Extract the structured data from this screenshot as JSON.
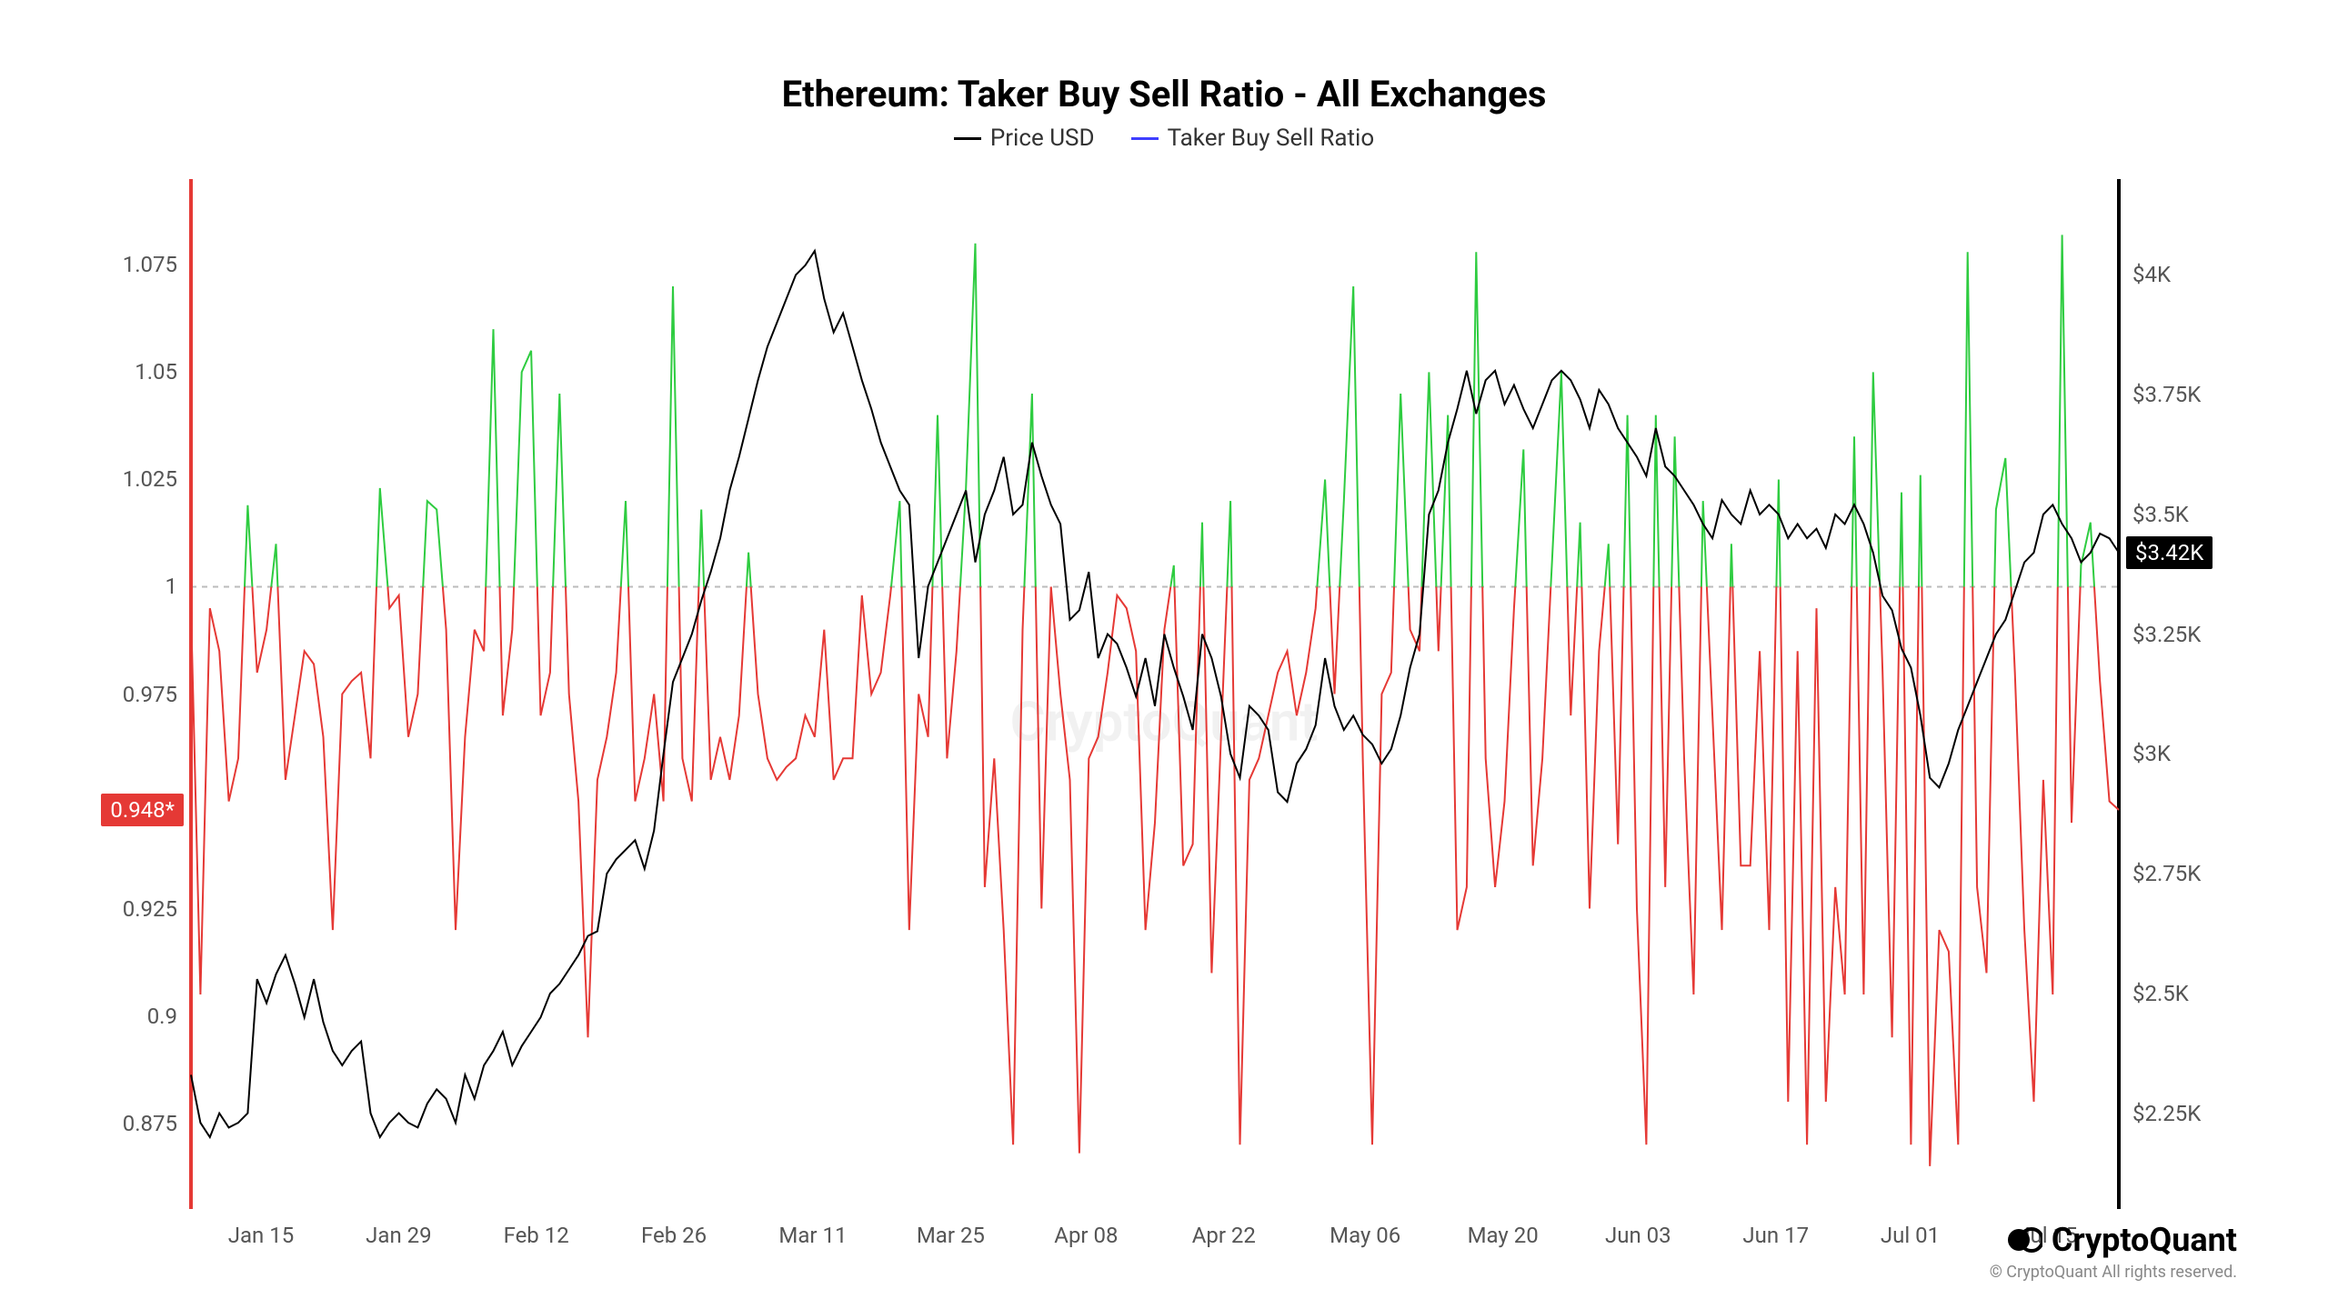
{
  "title": "Ethereum: Taker Buy Sell Ratio - All Exchanges",
  "legend": {
    "price": {
      "label": "Price USD",
      "color": "#000000"
    },
    "ratio": {
      "label": "Taker Buy Sell Ratio",
      "color": "#3f3fff"
    }
  },
  "watermark": "CryptoQuant",
  "brand": {
    "name": "CryptoQuant",
    "copyright": "© CryptoQuant All rights reserved."
  },
  "chart": {
    "type": "line-dual-axis",
    "background_color": "#ffffff",
    "grid_color": "#cccccc",
    "reference_line": {
      "value": 1.0,
      "color": "#bbbbbb",
      "dash": "6,6"
    },
    "series_price_color": "#000000",
    "series_ratio_above_color": "#2ecc40",
    "series_ratio_below_color": "#e53935",
    "line_width": 2,
    "left_axis": {
      "min": 0.855,
      "max": 1.095,
      "ticks": [
        0.875,
        0.9,
        0.925,
        0.95,
        0.975,
        1.0,
        1.025,
        1.05,
        1.075
      ],
      "badge": {
        "value": "0.948*",
        "pos": 0.948,
        "bg": "#e53935",
        "fg": "#ffffff"
      }
    },
    "right_axis": {
      "min": 2050,
      "max": 4200,
      "ticks": [
        {
          "v": 2250,
          "l": "$2.25K"
        },
        {
          "v": 2500,
          "l": "$2.5K"
        },
        {
          "v": 2750,
          "l": "$2.75K"
        },
        {
          "v": 3000,
          "l": "$3K"
        },
        {
          "v": 3250,
          "l": "$3.25K"
        },
        {
          "v": 3500,
          "l": "$3.5K"
        },
        {
          "v": 3750,
          "l": "$3.75K"
        },
        {
          "v": 4000,
          "l": "$4K"
        }
      ],
      "badge": {
        "value": "$3.42K",
        "pos": 3420,
        "bg": "#000000",
        "fg": "#ffffff"
      }
    },
    "x_axis": {
      "labels": [
        "Jan 15",
        "Jan 29",
        "Feb 12",
        "Feb 26",
        "Mar 11",
        "Mar 25",
        "Apr 08",
        "Apr 22",
        "May 06",
        "May 20",
        "Jun 03",
        "Jun 17",
        "Jul 01",
        "Jul 15"
      ]
    },
    "ratio_values": [
      0.995,
      0.905,
      0.995,
      0.985,
      0.95,
      0.96,
      1.019,
      0.98,
      0.99,
      1.01,
      0.955,
      0.97,
      0.985,
      0.982,
      0.965,
      0.92,
      0.975,
      0.978,
      0.98,
      0.96,
      1.023,
      0.995,
      0.998,
      0.965,
      0.975,
      1.02,
      1.018,
      0.99,
      0.92,
      0.965,
      0.99,
      0.985,
      1.06,
      0.97,
      0.99,
      1.05,
      1.055,
      0.97,
      0.98,
      1.045,
      0.975,
      0.95,
      0.895,
      0.955,
      0.965,
      0.98,
      1.02,
      0.95,
      0.96,
      0.975,
      0.95,
      1.07,
      0.96,
      0.95,
      1.018,
      0.955,
      0.965,
      0.955,
      0.97,
      1.008,
      0.975,
      0.96,
      0.955,
      0.958,
      0.96,
      0.97,
      0.965,
      0.99,
      0.955,
      0.96,
      0.96,
      0.998,
      0.975,
      0.98,
      0.998,
      1.02,
      0.92,
      0.975,
      0.965,
      1.04,
      0.96,
      0.985,
      1.023,
      1.08,
      0.93,
      0.96,
      0.92,
      0.87,
      0.99,
      1.045,
      0.925,
      1.0,
      0.975,
      0.955,
      0.868,
      0.96,
      0.965,
      0.98,
      0.998,
      0.995,
      0.985,
      0.92,
      0.945,
      0.99,
      1.005,
      0.935,
      0.94,
      1.015,
      0.91,
      0.965,
      1.02,
      0.87,
      0.955,
      0.96,
      0.97,
      0.98,
      0.985,
      0.97,
      0.98,
      0.995,
      1.025,
      0.975,
      1.02,
      1.07,
      0.96,
      0.87,
      0.975,
      0.98,
      1.045,
      0.99,
      0.985,
      1.05,
      0.985,
      1.04,
      0.92,
      0.93,
      1.078,
      0.96,
      0.93,
      0.95,
      0.995,
      1.032,
      0.935,
      0.96,
      1.005,
      1.05,
      0.97,
      1.015,
      0.925,
      0.985,
      1.01,
      0.94,
      1.04,
      0.925,
      0.87,
      1.04,
      0.93,
      1.035,
      0.96,
      0.905,
      1.02,
      0.97,
      0.92,
      1.01,
      0.935,
      0.935,
      0.985,
      0.92,
      1.025,
      0.88,
      0.985,
      0.87,
      0.995,
      0.88,
      0.93,
      0.905,
      1.035,
      0.905,
      1.05,
      0.98,
      0.895,
      1.022,
      0.87,
      1.026,
      0.865,
      0.92,
      0.915,
      0.87,
      1.078,
      0.93,
      0.91,
      1.018,
      1.03,
      0.98,
      0.92,
      0.88,
      0.955,
      0.905,
      1.082,
      0.945,
      1.005,
      1.015,
      0.978,
      0.95,
      0.948
    ],
    "price_values": [
      2330,
      2230,
      2200,
      2250,
      2220,
      2230,
      2250,
      2530,
      2480,
      2540,
      2580,
      2520,
      2450,
      2530,
      2440,
      2380,
      2350,
      2380,
      2400,
      2250,
      2200,
      2230,
      2250,
      2230,
      2220,
      2270,
      2300,
      2280,
      2230,
      2330,
      2280,
      2350,
      2380,
      2420,
      2350,
      2390,
      2420,
      2450,
      2500,
      2520,
      2550,
      2580,
      2620,
      2630,
      2750,
      2780,
      2800,
      2820,
      2760,
      2840,
      3000,
      3150,
      3200,
      3250,
      3320,
      3380,
      3450,
      3550,
      3620,
      3700,
      3780,
      3850,
      3900,
      3950,
      4000,
      4020,
      4050,
      3950,
      3880,
      3920,
      3850,
      3780,
      3720,
      3650,
      3600,
      3550,
      3520,
      3200,
      3350,
      3400,
      3450,
      3500,
      3550,
      3400,
      3500,
      3550,
      3620,
      3500,
      3520,
      3650,
      3580,
      3520,
      3480,
      3280,
      3300,
      3380,
      3200,
      3250,
      3230,
      3180,
      3120,
      3200,
      3100,
      3250,
      3180,
      3120,
      3050,
      3250,
      3200,
      3120,
      3000,
      2950,
      3100,
      3080,
      3050,
      2920,
      2900,
      2980,
      3010,
      3060,
      3200,
      3100,
      3050,
      3080,
      3040,
      3020,
      2980,
      3010,
      3080,
      3180,
      3250,
      3500,
      3550,
      3650,
      3720,
      3800,
      3710,
      3780,
      3800,
      3730,
      3770,
      3720,
      3680,
      3730,
      3780,
      3800,
      3780,
      3740,
      3680,
      3760,
      3730,
      3680,
      3650,
      3620,
      3580,
      3680,
      3600,
      3580,
      3550,
      3520,
      3480,
      3450,
      3530,
      3500,
      3480,
      3550,
      3500,
      3520,
      3500,
      3450,
      3480,
      3450,
      3470,
      3430,
      3500,
      3480,
      3520,
      3480,
      3420,
      3330,
      3300,
      3220,
      3180,
      3080,
      2950,
      2930,
      2980,
      3050,
      3100,
      3150,
      3200,
      3250,
      3280,
      3340,
      3400,
      3420,
      3500,
      3520,
      3480,
      3450,
      3400,
      3420,
      3460,
      3450,
      3420
    ]
  }
}
